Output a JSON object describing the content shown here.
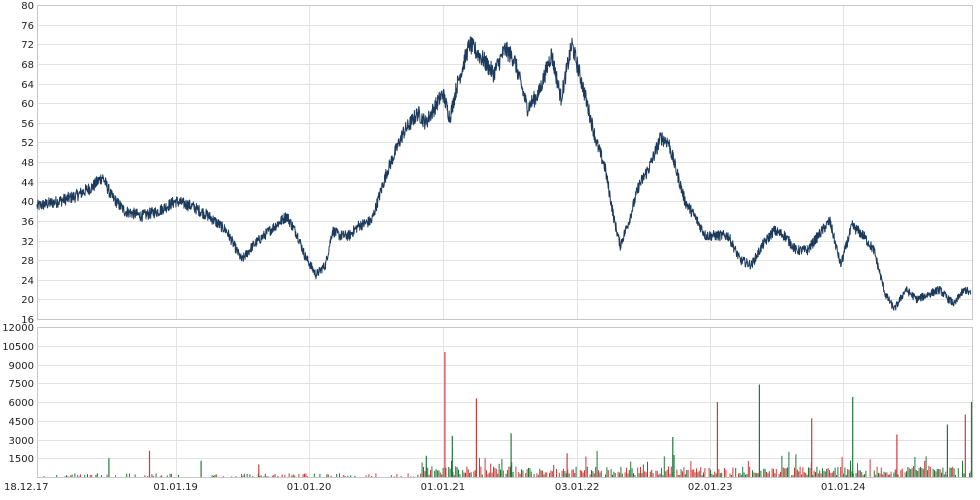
{
  "chart_data": [
    {
      "type": "line",
      "title": "",
      "xlabel": "",
      "ylabel": "",
      "ylim": [
        16,
        80
      ],
      "y_ticks": [
        16,
        20,
        24,
        28,
        32,
        36,
        40,
        44,
        48,
        52,
        56,
        60,
        64,
        68,
        72,
        76,
        80
      ],
      "grid": true,
      "color": "#1b3a5c",
      "x_ticks": [
        "18.12.17",
        "01.01.19",
        "01.01.20",
        "01.01.21",
        "03.01.22",
        "02.01.23",
        "01.01.24"
      ],
      "series": [
        {
          "x": [
            "2017-12-18",
            "2018-02-15",
            "2018-04-01",
            "2018-05-20",
            "2018-06-15",
            "2018-07-10",
            "2018-08-15",
            "2018-10-01",
            "2018-11-15",
            "2019-01-01",
            "2019-02-15",
            "2019-04-01",
            "2019-05-20",
            "2019-07-01",
            "2019-08-01",
            "2019-09-15",
            "2019-11-01",
            "2019-12-01",
            "2019-12-20",
            "2020-01-20",
            "2020-02-15",
            "2020-03-05",
            "2020-03-25",
            "2020-04-20",
            "2020-05-15",
            "2020-06-20",
            "2020-08-01",
            "2020-09-15",
            "2020-10-25",
            "2020-11-15",
            "2021-01-01",
            "2021-01-20",
            "2021-02-10",
            "2021-03-15",
            "2021-04-20",
            "2021-05-20",
            "2021-06-20",
            "2021-07-15",
            "2021-08-20",
            "2021-09-20",
            "2021-10-25",
            "2021-11-20",
            "2021-12-20",
            "2022-01-20",
            "2022-02-25",
            "2022-03-20",
            "2022-04-15",
            "2022-05-01",
            "2022-05-25",
            "2022-06-20",
            "2022-07-20",
            "2022-08-20",
            "2022-09-10",
            "2022-09-25",
            "2022-10-25",
            "2022-11-20",
            "2022-12-20",
            "2023-01-15",
            "2023-02-20",
            "2023-03-25",
            "2023-04-25",
            "2023-05-25",
            "2023-06-25",
            "2023-07-25",
            "2023-08-25",
            "2023-09-25",
            "2023-10-25",
            "2023-11-25",
            "2023-12-25",
            "2024-01-25",
            "2024-02-25",
            "2024-03-25",
            "2024-04-25",
            "2024-05-20",
            "2024-06-20",
            "2024-07-20",
            "2024-08-20",
            "2024-09-20",
            "2024-10-15",
            "2024-11-01",
            "2024-11-15",
            "2024-12-01",
            "2024-12-15"
          ],
          "values": [
            39,
            40,
            41,
            43,
            45,
            41,
            38,
            37,
            38,
            40,
            39,
            37,
            34,
            28,
            31,
            34,
            37,
            33,
            29,
            25,
            27,
            34,
            33,
            33,
            35,
            36,
            46,
            54,
            58,
            56,
            62,
            57,
            64,
            72,
            69,
            66,
            71,
            69,
            59,
            62,
            70,
            61,
            72,
            63,
            52,
            47,
            36,
            31,
            36,
            43,
            47,
            53,
            52,
            48,
            40,
            37,
            33,
            33,
            33,
            28,
            27,
            31,
            34,
            33,
            30,
            30,
            33,
            36,
            27,
            35,
            33,
            30,
            21,
            18,
            22,
            20,
            21,
            22,
            20,
            19,
            21,
            22,
            21
          ]
        }
      ]
    },
    {
      "type": "bar",
      "title": "",
      "xlabel": "",
      "ylabel": "",
      "ylim": [
        0,
        12000
      ],
      "y_ticks": [
        0,
        1500,
        3000,
        4500,
        6000,
        7500,
        9000,
        10500,
        12000
      ],
      "y_tick_labels": [
        "1500",
        "3000",
        "4500",
        "6000",
        "7500",
        "9000",
        "10500",
        "12000"
      ],
      "up_color": "#1f7a3a",
      "down_color": "#d23a3a",
      "x_ticks": [
        "18.12.17",
        "01.01.19",
        "01.01.20",
        "01.01.21",
        "03.01.22",
        "02.01.23",
        "01.01.24"
      ],
      "spikes": [
        {
          "date": "2018-07-01",
          "value": 1500
        },
        {
          "date": "2018-10-20",
          "value": 2100
        },
        {
          "date": "2019-03-10",
          "value": 1300
        },
        {
          "date": "2019-08-15",
          "value": 1000
        },
        {
          "date": "2020-11-15",
          "value": 1700
        },
        {
          "date": "2021-01-05",
          "value": 10000
        },
        {
          "date": "2021-01-25",
          "value": 3300
        },
        {
          "date": "2021-04-01",
          "value": 6300
        },
        {
          "date": "2021-07-05",
          "value": 3500
        },
        {
          "date": "2021-12-05",
          "value": 1900
        },
        {
          "date": "2022-09-20",
          "value": 3200
        },
        {
          "date": "2023-01-20",
          "value": 6000
        },
        {
          "date": "2023-05-15",
          "value": 7400
        },
        {
          "date": "2023-10-05",
          "value": 4700
        },
        {
          "date": "2024-01-25",
          "value": 6400
        },
        {
          "date": "2024-05-25",
          "value": 3400
        },
        {
          "date": "2024-10-10",
          "value": 4200
        },
        {
          "date": "2024-11-28",
          "value": 5000
        },
        {
          "date": "2024-12-15",
          "value": 6000
        }
      ]
    }
  ]
}
